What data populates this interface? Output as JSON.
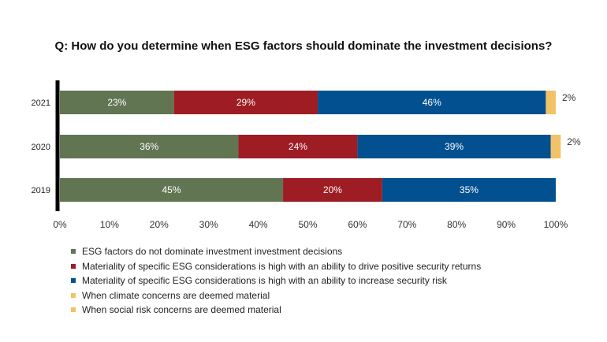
{
  "title": "Q: How do you determine when ESG factors should dominate the investment decisions?",
  "colors": {
    "not_dominate": "#627553",
    "positive_returns": "#9e1c23",
    "security_risk": "#02508f",
    "climate": "#f2c266",
    "social": "#f2c266"
  },
  "chart_data": {
    "type": "bar",
    "orientation": "horizontal",
    "stacked": true,
    "title": "Q: How do you determine when ESG factors should dominate the investment decisions?",
    "categories": [
      "2021",
      "2020",
      "2019"
    ],
    "xlim": [
      0,
      100
    ],
    "x_ticks": [
      "0%",
      "10%",
      "20%",
      "30%",
      "40%",
      "50%",
      "60%",
      "70%",
      "80%",
      "90%",
      "100%"
    ],
    "grid": false,
    "legend_position": "bottom",
    "series": [
      {
        "name": "ESG factors do not dominate investment investment decisions",
        "color_key": "not_dominate",
        "values": [
          23,
          36,
          45
        ],
        "labels": [
          "23%",
          "36%",
          "45%"
        ]
      },
      {
        "name": "Materiality of specific ESG considerations is high with an ability to drive positive security returns",
        "color_key": "positive_returns",
        "values": [
          29,
          24,
          20
        ],
        "labels": [
          "29%",
          "24%",
          "20%"
        ]
      },
      {
        "name": "Materiality of specific ESG considerations is high with an ability to increase security risk",
        "color_key": "security_risk",
        "values": [
          46,
          39,
          35
        ],
        "labels": [
          "46%",
          "39%",
          "35%"
        ]
      },
      {
        "name": "When climate concerns are deemed material",
        "color_key": "climate",
        "values": [
          2,
          2,
          0
        ],
        "labels": [
          "2%",
          "2%",
          ""
        ]
      },
      {
        "name": "When social risk concerns are deemed material",
        "color_key": "social",
        "values": [
          0,
          0,
          0
        ],
        "labels": [
          "",
          "",
          ""
        ]
      }
    ]
  }
}
